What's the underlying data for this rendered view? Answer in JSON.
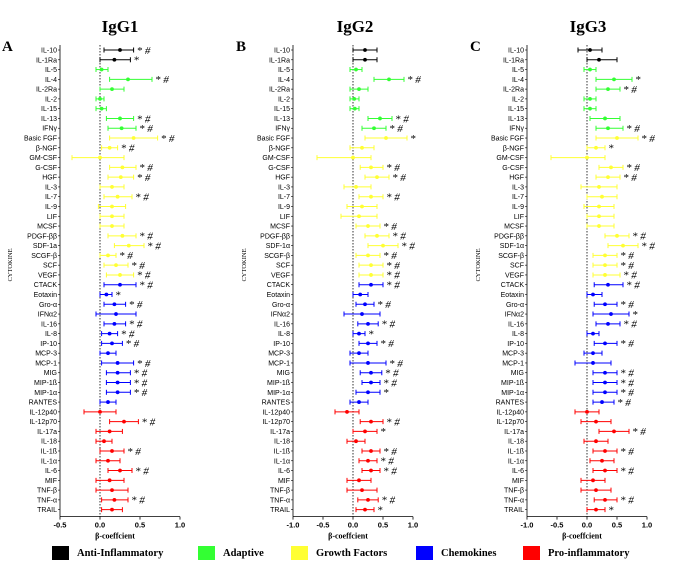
{
  "legend": [
    {
      "label": "Anti-Inflammatory",
      "color": "#000000"
    },
    {
      "label": "Adaptive",
      "color": "#33ff33"
    },
    {
      "label": "Growth Factors",
      "color": "#ffff33"
    },
    {
      "label": "Chemokines",
      "color": "#0000ff"
    },
    {
      "label": "Pro-inflammatory",
      "color": "#ff0000"
    }
  ],
  "chart_data": [
    {
      "type": "scatter",
      "letter": "A",
      "title": "IgG1",
      "xlabel": "β-coeffcient",
      "ylabel": "CYTOKINE",
      "xlim": [
        -0.5,
        1.0
      ],
      "xticks": [
        "-0.5",
        "0.0",
        "0.5",
        "1.0"
      ],
      "categories": [
        "IL-10",
        "IL-1Ra",
        "IL-5",
        "IL-4",
        "IL-2Ra",
        "IL-2",
        "IL-15",
        "IL-13",
        "IFNγ",
        "Basic FGF",
        "β-NGF",
        "GM-CSF",
        "G-CSF",
        "HGF",
        "IL-3",
        "IL-7",
        "IL-9",
        "LIF",
        "MCSF",
        "PDGF-ββ",
        "SDF-1a",
        "SCGF-β",
        "SCF",
        "VEGF",
        "CTACK",
        "Eotaxin",
        "Gro-α",
        "IFNα2",
        "IL-16",
        "IL-8",
        "IP-10",
        "MCP-3",
        "MCP-1",
        "MIG",
        "MIP-1ß",
        "MIP-1α",
        "RANTES",
        "IL-12p40",
        "IL-12p70",
        "IL-17a",
        "IL-18",
        "IL-1ß",
        "IL-1α",
        "IL-6",
        "MIF",
        "TNF-β",
        "TNF-α",
        "TRAIL"
      ],
      "groups": [
        "Anti-Inflammatory",
        "Anti-Inflammatory",
        "Adaptive",
        "Adaptive",
        "Adaptive",
        "Adaptive",
        "Adaptive",
        "Adaptive",
        "Adaptive",
        "Growth Factors",
        "Growth Factors",
        "Growth Factors",
        "Growth Factors",
        "Growth Factors",
        "Growth Factors",
        "Growth Factors",
        "Growth Factors",
        "Growth Factors",
        "Growth Factors",
        "Growth Factors",
        "Growth Factors",
        "Growth Factors",
        "Growth Factors",
        "Growth Factors",
        "Chemokines",
        "Chemokines",
        "Chemokines",
        "Chemokines",
        "Chemokines",
        "Chemokines",
        "Chemokines",
        "Chemokines",
        "Chemokines",
        "Chemokines",
        "Chemokines",
        "Chemokines",
        "Chemokines",
        "Pro-inflammatory",
        "Pro-inflammatory",
        "Pro-inflammatory",
        "Pro-inflammatory",
        "Pro-inflammatory",
        "Pro-inflammatory",
        "Pro-inflammatory",
        "Pro-inflammatory",
        "Pro-inflammatory",
        "Pro-inflammatory",
        "Pro-inflammatory"
      ],
      "estimate": [
        0.25,
        0.18,
        0.02,
        0.35,
        0.15,
        0.0,
        0.02,
        0.25,
        0.27,
        0.42,
        0.12,
        0.0,
        0.28,
        0.26,
        0.15,
        0.22,
        0.15,
        0.15,
        0.15,
        0.28,
        0.36,
        0.1,
        0.2,
        0.25,
        0.25,
        0.08,
        0.18,
        0.2,
        0.18,
        0.12,
        0.15,
        0.1,
        0.22,
        0.22,
        0.22,
        0.22,
        0.1,
        0.0,
        0.3,
        0.12,
        0.05,
        0.15,
        0.1,
        0.25,
        0.12,
        0.15,
        0.18,
        0.15
      ],
      "lower": [
        0.05,
        0.0,
        -0.05,
        0.12,
        0.0,
        -0.05,
        -0.05,
        0.08,
        0.1,
        0.12,
        0.02,
        -0.35,
        0.12,
        0.1,
        0.0,
        0.05,
        -0.02,
        0.0,
        0.0,
        0.1,
        0.18,
        0.0,
        0.05,
        0.08,
        0.05,
        0.0,
        0.05,
        -0.05,
        0.05,
        0.02,
        0.02,
        0.0,
        0.02,
        0.08,
        0.08,
        0.08,
        0.0,
        -0.2,
        0.12,
        -0.05,
        -0.05,
        0.0,
        -0.05,
        0.1,
        -0.05,
        -0.05,
        0.02,
        0.02
      ],
      "upper": [
        0.42,
        0.38,
        0.1,
        0.65,
        0.3,
        0.05,
        0.08,
        0.42,
        0.45,
        0.72,
        0.22,
        0.3,
        0.45,
        0.42,
        0.3,
        0.4,
        0.32,
        0.3,
        0.3,
        0.45,
        0.55,
        0.2,
        0.35,
        0.42,
        0.45,
        0.15,
        0.32,
        0.45,
        0.32,
        0.22,
        0.28,
        0.2,
        0.42,
        0.38,
        0.38,
        0.38,
        0.2,
        0.2,
        0.48,
        0.28,
        0.15,
        0.3,
        0.25,
        0.4,
        0.3,
        0.35,
        0.35,
        0.28
      ],
      "significance": [
        "* #",
        "*",
        "",
        "* #",
        "",
        "",
        "",
        "* #",
        "* #",
        "* #",
        "* #",
        "",
        "* #",
        "* #",
        "",
        "* #",
        "",
        "",
        "",
        "* #",
        "* #",
        "* #",
        "* #",
        "* #",
        "* #",
        "*",
        "* #",
        "",
        "* #",
        "* #",
        "* #",
        "",
        "* #",
        "* #",
        "* #",
        "* #",
        "",
        "",
        "* #",
        "",
        "",
        "* #",
        "",
        "* #",
        "",
        "",
        "* #",
        ""
      ]
    },
    {
      "type": "scatter",
      "letter": "B",
      "title": "IgG2",
      "xlabel": "β-coeffcient",
      "ylabel": "CYTOKINE",
      "xlim": [
        -1.0,
        1.0
      ],
      "xticks": [
        "-1.0",
        "-0.5",
        "0.0",
        "0.5",
        "1.0"
      ],
      "categories": [
        "IL-10",
        "IL-1Ra",
        "IL-5",
        "IL-4",
        "IL-2Ra",
        "IL-2",
        "IL-15",
        "IL-13",
        "IFNγ",
        "Basic FGF",
        "β-NGF",
        "GM-CSF",
        "G-CSF",
        "HGF",
        "IL-3",
        "IL-7",
        "IL-9",
        "LIF",
        "MCSF",
        "PDGF-ββ",
        "SDF-1α",
        "SCGF-β",
        "SCF",
        "VEGF",
        "CTACK",
        "Eotaxin",
        "Gro-α",
        "IFNα2",
        "IL-16",
        "IL-8",
        "IP-10",
        "MCP-3",
        "MCP-1",
        "MIG",
        "MIP-1ß",
        "MIP-1α",
        "RANTES",
        "IL-12p40",
        "IL-12p70",
        "IL-17a",
        "IL-18",
        "IL-1ß",
        "IL-1α",
        "IL-6",
        "MIF",
        "TNF-β",
        "TNF-α",
        "TRAIL"
      ],
      "groups": [
        "Anti-Inflammatory",
        "Anti-Inflammatory",
        "Adaptive",
        "Adaptive",
        "Adaptive",
        "Adaptive",
        "Adaptive",
        "Adaptive",
        "Adaptive",
        "Growth Factors",
        "Growth Factors",
        "Growth Factors",
        "Growth Factors",
        "Growth Factors",
        "Growth Factors",
        "Growth Factors",
        "Growth Factors",
        "Growth Factors",
        "Growth Factors",
        "Growth Factors",
        "Growth Factors",
        "Growth Factors",
        "Growth Factors",
        "Growth Factors",
        "Chemokines",
        "Chemokines",
        "Chemokines",
        "Chemokines",
        "Chemokines",
        "Chemokines",
        "Chemokines",
        "Chemokines",
        "Chemokines",
        "Chemokines",
        "Chemokines",
        "Chemokines",
        "Chemokines",
        "Pro-inflammatory",
        "Pro-inflammatory",
        "Pro-inflammatory",
        "Pro-inflammatory",
        "Pro-inflammatory",
        "Pro-inflammatory",
        "Pro-inflammatory",
        "Pro-inflammatory",
        "Pro-inflammatory",
        "Pro-inflammatory",
        "Pro-inflammatory"
      ],
      "estimate": [
        0.2,
        0.2,
        0.05,
        0.6,
        0.1,
        0.02,
        0.03,
        0.45,
        0.35,
        0.55,
        0.15,
        0.0,
        0.3,
        0.4,
        0.05,
        0.3,
        0.15,
        0.1,
        0.25,
        0.4,
        0.5,
        0.25,
        0.3,
        0.3,
        0.3,
        0.12,
        0.2,
        0.15,
        0.25,
        0.1,
        0.25,
        0.1,
        0.25,
        0.3,
        0.3,
        0.25,
        0.1,
        -0.1,
        0.3,
        0.2,
        0.05,
        0.3,
        0.25,
        0.3,
        0.1,
        0.15,
        0.25,
        0.2
      ],
      "lower": [
        0.0,
        0.0,
        -0.05,
        0.35,
        -0.05,
        -0.05,
        -0.05,
        0.25,
        0.15,
        0.2,
        -0.05,
        -0.6,
        0.12,
        0.2,
        -0.15,
        0.1,
        -0.1,
        -0.2,
        0.05,
        0.2,
        0.25,
        0.05,
        0.1,
        0.1,
        0.1,
        0.0,
        0.05,
        -0.15,
        0.08,
        0.0,
        0.1,
        -0.05,
        -0.05,
        0.12,
        0.15,
        0.05,
        -0.05,
        -0.3,
        0.12,
        0.0,
        -0.1,
        0.15,
        0.1,
        0.15,
        -0.1,
        -0.1,
        0.08,
        0.05
      ],
      "upper": [
        0.4,
        0.4,
        0.15,
        0.85,
        0.25,
        0.1,
        0.1,
        0.65,
        0.55,
        0.9,
        0.35,
        0.3,
        0.5,
        0.6,
        0.3,
        0.5,
        0.4,
        0.4,
        0.45,
        0.6,
        0.75,
        0.45,
        0.5,
        0.5,
        0.5,
        0.25,
        0.35,
        0.45,
        0.42,
        0.2,
        0.4,
        0.25,
        0.55,
        0.48,
        0.45,
        0.45,
        0.25,
        0.1,
        0.5,
        0.4,
        0.2,
        0.45,
        0.4,
        0.45,
        0.3,
        0.4,
        0.42,
        0.35
      ],
      "significance": [
        "",
        "",
        "",
        "* #",
        "",
        "",
        "",
        "* #",
        "* #",
        "*",
        "",
        "",
        "* #",
        "* #",
        "",
        "* #",
        "",
        "",
        "* #",
        "* #",
        "* #",
        "* #",
        "* #",
        "* #",
        "* #",
        "",
        "* #",
        "",
        "* #",
        "*",
        "* #",
        "",
        "* #",
        "* #",
        "* #",
        "*",
        "",
        "",
        "* #",
        "*",
        "",
        "* #",
        "* #",
        "* #",
        "",
        "",
        "* #",
        "*"
      ]
    },
    {
      "type": "scatter",
      "letter": "C",
      "title": "IgG3",
      "xlabel": "β-coeffcient",
      "ylabel": "CYTOKINE",
      "xlim": [
        -1.0,
        1.0
      ],
      "xticks": [
        "-1.0",
        "-0.5",
        "0.0",
        "0.5",
        "1.0"
      ],
      "categories": [
        "IL-10",
        "IL-1Ra",
        "IL-5",
        "IL-4",
        "IL-2Ra",
        "IL-2",
        "IL-15",
        "IL-13",
        "IFNγ",
        "Basic FGF",
        "β-NGF",
        "GM-CSF",
        "G-CSF",
        "HGF",
        "IL-3",
        "IL-7",
        "IL-9",
        "LIF",
        "MCSF",
        "PDGF-ββ",
        "SDF-1α",
        "SCGF-β",
        "SCF",
        "VEGF",
        "CTACK",
        "Eotaxin",
        "Gro-α",
        "IFNα2",
        "IL-16",
        "IL-8",
        "IP-10",
        "MCP-3",
        "MCP-1",
        "MIG",
        "MIP-1ß",
        "MIP-1α",
        "RANTES",
        "IL-12p40",
        "IL-12p70",
        "IL-17a",
        "IL-18",
        "IL-1ß",
        "IL-1α",
        "IL-6",
        "MIF",
        "TNF-β",
        "TNF-α",
        "TRAIL"
      ],
      "groups": [
        "Anti-Inflammatory",
        "Anti-Inflammatory",
        "Adaptive",
        "Adaptive",
        "Adaptive",
        "Adaptive",
        "Adaptive",
        "Adaptive",
        "Adaptive",
        "Growth Factors",
        "Growth Factors",
        "Growth Factors",
        "Growth Factors",
        "Growth Factors",
        "Growth Factors",
        "Growth Factors",
        "Growth Factors",
        "Growth Factors",
        "Growth Factors",
        "Growth Factors",
        "Growth Factors",
        "Growth Factors",
        "Growth Factors",
        "Growth Factors",
        "Chemokines",
        "Chemokines",
        "Chemokines",
        "Chemokines",
        "Chemokines",
        "Chemokines",
        "Chemokines",
        "Chemokines",
        "Chemokines",
        "Chemokines",
        "Chemokines",
        "Chemokines",
        "Chemokines",
        "Pro-inflammatory",
        "Pro-inflammatory",
        "Pro-inflammatory",
        "Pro-inflammatory",
        "Pro-inflammatory",
        "Pro-inflammatory",
        "Pro-inflammatory",
        "Pro-inflammatory",
        "Pro-inflammatory",
        "Pro-inflammatory",
        "Pro-inflammatory"
      ],
      "estimate": [
        0.05,
        0.2,
        0.05,
        0.45,
        0.35,
        0.05,
        0.05,
        0.3,
        0.35,
        0.5,
        0.15,
        0.0,
        0.4,
        0.35,
        0.2,
        0.25,
        0.2,
        0.2,
        0.2,
        0.5,
        0.6,
        0.3,
        0.3,
        0.3,
        0.35,
        0.1,
        0.3,
        0.4,
        0.35,
        0.1,
        0.3,
        0.1,
        0.1,
        0.3,
        0.3,
        0.3,
        0.25,
        0.0,
        0.15,
        0.45,
        0.15,
        0.3,
        0.25,
        0.3,
        0.1,
        0.15,
        0.3,
        0.15
      ],
      "lower": [
        -0.15,
        0.0,
        -0.05,
        0.15,
        0.15,
        -0.05,
        -0.05,
        0.05,
        0.15,
        0.15,
        0.0,
        -0.6,
        0.2,
        0.15,
        -0.1,
        0.0,
        -0.05,
        0.0,
        0.0,
        0.3,
        0.35,
        0.1,
        0.1,
        0.1,
        0.12,
        0.0,
        0.12,
        0.1,
        0.15,
        0.0,
        0.12,
        -0.05,
        -0.2,
        0.1,
        0.1,
        0.1,
        0.1,
        -0.2,
        -0.1,
        0.2,
        -0.05,
        0.1,
        0.05,
        0.1,
        -0.1,
        -0.1,
        0.12,
        0.0
      ],
      "upper": [
        0.25,
        0.5,
        0.15,
        0.75,
        0.55,
        0.15,
        0.15,
        0.55,
        0.6,
        0.85,
        0.3,
        0.3,
        0.6,
        0.55,
        0.5,
        0.5,
        0.45,
        0.45,
        0.45,
        0.7,
        0.85,
        0.5,
        0.5,
        0.55,
        0.6,
        0.25,
        0.5,
        0.7,
        0.55,
        0.2,
        0.5,
        0.25,
        0.4,
        0.5,
        0.5,
        0.5,
        0.45,
        0.2,
        0.4,
        0.7,
        0.35,
        0.5,
        0.45,
        0.5,
        0.3,
        0.4,
        0.5,
        0.3
      ],
      "significance": [
        "",
        "",
        "",
        "*",
        "* #",
        "",
        "",
        "",
        "* #",
        "* #",
        "*",
        "",
        "* #",
        "* #",
        "",
        "",
        "",
        "",
        "",
        "* #",
        "* #",
        "* #",
        "* #",
        "* #",
        "* #",
        "",
        "* #",
        "*",
        "* #",
        "",
        "* #",
        "",
        "",
        "* #",
        "* #",
        "* #",
        "* #",
        "",
        "",
        "* #",
        "",
        "* #",
        "",
        "* #",
        "",
        "",
        "* #",
        "*"
      ]
    }
  ]
}
